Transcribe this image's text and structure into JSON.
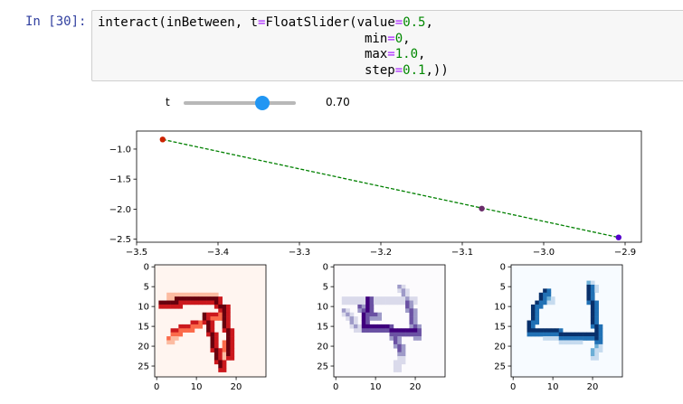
{
  "cell": {
    "prompt": "In [30]:",
    "code_lines": [
      [
        {
          "t": "interact(inBetween, t"
        },
        {
          "t": "=",
          "c": "op"
        },
        {
          "t": "FloatSlider(value"
        },
        {
          "t": "=",
          "c": "op"
        },
        {
          "t": "0.5",
          "c": "num"
        },
        {
          "t": ","
        }
      ],
      [
        {
          "t": "                                   min"
        },
        {
          "t": "=",
          "c": "op"
        },
        {
          "t": "0",
          "c": "num"
        },
        {
          "t": ","
        }
      ],
      [
        {
          "t": "                                   max"
        },
        {
          "t": "=",
          "c": "op"
        },
        {
          "t": "1.0",
          "c": "num"
        },
        {
          "t": ","
        }
      ],
      [
        {
          "t": "                                   step"
        },
        {
          "t": "=",
          "c": "op"
        },
        {
          "t": "0.1",
          "c": "num"
        },
        {
          "t": ",))"
        }
      ]
    ]
  },
  "widget": {
    "label": "t",
    "readout": "0.70",
    "value": 0.7,
    "min": 0,
    "max": 1.0,
    "accent": "#2196F3"
  },
  "chart_data": [
    {
      "type": "line",
      "series": [
        {
          "x": [
            -3.468,
            -2.908
          ],
          "y": [
            -0.84,
            -2.47
          ],
          "style": "dashed",
          "color": "#008000"
        }
      ],
      "points": [
        {
          "x": -3.468,
          "y": -0.84,
          "color": "#cc2200"
        },
        {
          "x": -3.076,
          "y": -1.99,
          "color": "#6a2d6a"
        },
        {
          "x": -2.908,
          "y": -2.47,
          "color": "#5500cc"
        }
      ],
      "xlim": [
        -3.5,
        -2.88
      ],
      "ylim": [
        -2.55,
        -0.7
      ],
      "xticks": [
        -3.5,
        -3.4,
        -3.3,
        -3.2,
        -3.1,
        -3.0,
        -2.9
      ],
      "xtick_labels": [
        "−3.5",
        "−3.4",
        "−3.3",
        "−3.2",
        "−3.1",
        "−3.0",
        "−2.9"
      ],
      "yticks": [
        -1.0,
        -1.5,
        -2.0,
        -2.5
      ],
      "ytick_labels": [
        "−1.0",
        "−1.5",
        "−2.0",
        "−2.5"
      ],
      "grid": false
    },
    {
      "type": "heatmap",
      "cmap": "Reds",
      "colors": [
        "#fff5f0",
        "#fcbba1",
        "#fb6a4a",
        "#cb181d",
        "#67000d"
      ],
      "xticks": [
        0,
        10,
        20
      ],
      "yticks": [
        0,
        5,
        10,
        15,
        20,
        25
      ],
      "strokes": [
        {
          "r0": 9,
          "c0": 1,
          "r1": 9,
          "c1": 5,
          "v": 4
        },
        {
          "r0": 8,
          "c0": 5,
          "r1": 8,
          "c1": 15,
          "v": 4
        },
        {
          "r0": 9,
          "c0": 15,
          "r1": 10,
          "c1": 17,
          "v": 4
        },
        {
          "r0": 10,
          "c0": 17,
          "r1": 22,
          "c1": 18,
          "v": 4
        },
        {
          "r0": 12,
          "c0": 12,
          "r1": 25,
          "c1": 16,
          "v": 4
        },
        {
          "r0": 12,
          "c0": 12,
          "r1": 12,
          "c1": 15,
          "v": 3
        },
        {
          "r0": 14,
          "c0": 10,
          "r1": 16,
          "c1": 4,
          "v": 3
        },
        {
          "r0": 16,
          "c0": 4,
          "r1": 18,
          "c1": 3,
          "v": 2
        },
        {
          "r0": 7,
          "c0": 3,
          "r1": 7,
          "c1": 14,
          "v": 1
        },
        {
          "r0": 19,
          "c0": 17,
          "r1": 23,
          "c1": 16,
          "v": 2
        }
      ]
    },
    {
      "type": "heatmap",
      "cmap": "Purples",
      "colors": [
        "#fcfbfd",
        "#dadaeb",
        "#9e9ac8",
        "#6a51a3",
        "#3f007d"
      ],
      "xticks": [
        0,
        10,
        20
      ],
      "yticks": [
        0,
        5,
        10,
        15,
        20,
        25
      ],
      "strokes": [
        {
          "r0": 8,
          "c0": 2,
          "r1": 8,
          "c1": 19,
          "v": 1
        },
        {
          "r0": 8,
          "c0": 8,
          "r1": 15,
          "c1": 7,
          "v": 4
        },
        {
          "r0": 15,
          "c0": 7,
          "r1": 16,
          "c1": 20,
          "v": 4
        },
        {
          "r0": 9,
          "c0": 18,
          "r1": 17,
          "c1": 20,
          "v": 3
        },
        {
          "r0": 11,
          "c0": 2,
          "r1": 15,
          "c1": 5,
          "v": 2
        },
        {
          "r0": 10,
          "c0": 6,
          "r1": 12,
          "c1": 10,
          "v": 3
        },
        {
          "r0": 16,
          "c0": 14,
          "r1": 21,
          "c1": 16,
          "v": 3
        },
        {
          "r0": 21,
          "c0": 16,
          "r1": 25,
          "c1": 15,
          "v": 1
        },
        {
          "r0": 5,
          "c0": 16,
          "r1": 9,
          "c1": 18,
          "v": 2
        }
      ]
    },
    {
      "type": "heatmap",
      "cmap": "Blues",
      "colors": [
        "#f7fbff",
        "#c6dbef",
        "#6baed6",
        "#2171b5",
        "#08306b"
      ],
      "xticks": [
        0,
        10,
        20
      ],
      "yticks": [
        0,
        5,
        10,
        15,
        20,
        25
      ],
      "strokes": [
        {
          "r0": 6,
          "c0": 8,
          "r1": 10,
          "c1": 5,
          "v": 4
        },
        {
          "r0": 10,
          "c0": 5,
          "r1": 16,
          "c1": 4,
          "v": 4
        },
        {
          "r0": 16,
          "c0": 4,
          "r1": 17,
          "c1": 20,
          "v": 4
        },
        {
          "r0": 5,
          "c0": 19,
          "r1": 18,
          "c1": 21,
          "v": 4
        },
        {
          "r0": 18,
          "c0": 21,
          "r1": 22,
          "c1": 20,
          "v": 2
        },
        {
          "r0": 4,
          "c0": 19,
          "r1": 5,
          "c1": 20,
          "v": 2
        },
        {
          "r0": 7,
          "c0": 7,
          "r1": 8,
          "c1": 9,
          "v": 2
        },
        {
          "r0": 17,
          "c0": 8,
          "r1": 18,
          "c1": 16,
          "v": 2
        }
      ]
    }
  ]
}
